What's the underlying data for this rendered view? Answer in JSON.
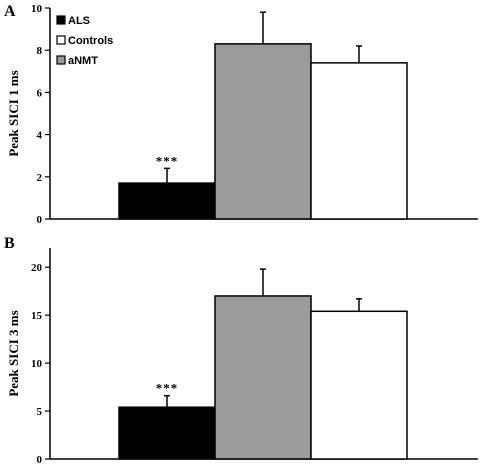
{
  "colors": {
    "ALS": "#000000",
    "aNMT": "#9b9b9b",
    "Controls": "#ffffff"
  },
  "chart_data": [
    {
      "type": "bar",
      "panel": "A",
      "ylabel": "Peak SICI 1 ms",
      "ylim": [
        0,
        10
      ],
      "yticks": [
        0,
        2,
        4,
        6,
        8,
        10
      ],
      "categories": [
        "ALS",
        "aNMT",
        "Controls"
      ],
      "values": [
        1.7,
        8.3,
        7.4
      ],
      "error_bars": [
        0.7,
        1.5,
        0.8
      ],
      "annotations": [
        {
          "category": "ALS",
          "text": "***"
        }
      ],
      "legend": {
        "position": "top-left",
        "entries": [
          {
            "label": "ALS",
            "category": "ALS"
          },
          {
            "label": "Controls",
            "category": "Controls"
          },
          {
            "label": "aNMT",
            "category": "aNMT"
          }
        ]
      }
    },
    {
      "type": "bar",
      "panel": "B",
      "ylabel": "Peak SICI 3 ms",
      "ylim": [
        0,
        22
      ],
      "yticks": [
        0,
        5,
        10,
        15,
        20
      ],
      "categories": [
        "ALS",
        "aNMT",
        "Controls"
      ],
      "values": [
        5.4,
        17.0,
        15.4
      ],
      "error_bars": [
        1.2,
        2.8,
        1.3
      ],
      "annotations": [
        {
          "category": "ALS",
          "text": "***"
        }
      ]
    }
  ]
}
